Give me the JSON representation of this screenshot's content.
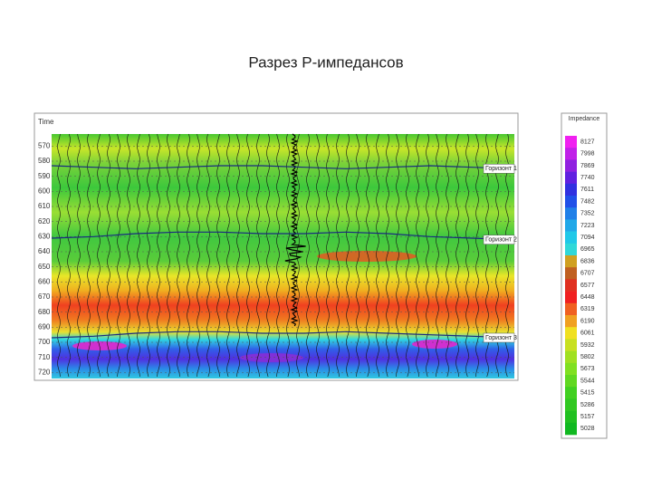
{
  "title": "Разрез P-импедансов",
  "section": {
    "axis_label": "Time",
    "ylim": [
      562,
      724
    ],
    "yticks": [
      570,
      580,
      590,
      600,
      610,
      620,
      630,
      640,
      650,
      660,
      670,
      680,
      690,
      700,
      710,
      720
    ],
    "horizons": [
      {
        "label": "Горизонт 1",
        "times": [
          583,
          584,
          585,
          584,
          583,
          583,
          584,
          585,
          584,
          583,
          584,
          585
        ]
      },
      {
        "label": "Горизонт 2",
        "times": [
          631,
          630,
          628,
          627,
          627,
          628,
          628,
          627,
          628,
          630,
          631,
          632
        ]
      },
      {
        "label": "Горизонт 3",
        "times": [
          697,
          696,
          694,
          693,
          693,
          694,
          694,
          693,
          694,
          695,
          696,
          697
        ]
      }
    ]
  },
  "colorbar": {
    "title": "Impedance",
    "labels": [
      8127,
      7998,
      7869,
      7740,
      7611,
      7482,
      7352,
      7223,
      7094,
      6965,
      6836,
      6707,
      6577,
      6448,
      6319,
      6190,
      6061,
      5932,
      5802,
      5673,
      5544,
      5415,
      5286,
      5157,
      5028
    ],
    "colors": [
      "#f020f0",
      "#c020e8",
      "#9020e0",
      "#6020e0",
      "#3030e0",
      "#2050e8",
      "#2080e8",
      "#20a8e8",
      "#20c8e8",
      "#30d8d8",
      "#d0a020",
      "#c06020",
      "#e03020",
      "#f02020",
      "#f06020",
      "#f0a020",
      "#f0e020",
      "#c8e020",
      "#a0e020",
      "#80e020",
      "#60d820",
      "#40d020",
      "#30c820",
      "#20c020",
      "#10b820"
    ]
  }
}
